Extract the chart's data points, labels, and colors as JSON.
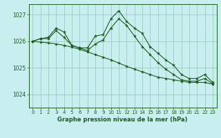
{
  "bg_color": "#c8eef0",
  "plot_bg_color": "#c8eef0",
  "grid_color": "#99ccbb",
  "line_color": "#1a5c1a",
  "marker_color": "#1a5c1a",
  "title": "Graphe pression niveau de la mer (hPa)",
  "ylim": [
    1023.5,
    1027.4
  ],
  "yticks": [
    1024,
    1025,
    1026,
    1027
  ],
  "xlim": [
    -0.5,
    23.5
  ],
  "xticks": [
    0,
    1,
    2,
    3,
    4,
    5,
    6,
    7,
    8,
    9,
    10,
    11,
    12,
    13,
    14,
    15,
    16,
    17,
    18,
    19,
    20,
    21,
    22,
    23
  ],
  "series": [
    [
      1026.0,
      1026.1,
      1026.15,
      1026.5,
      1026.35,
      1025.85,
      1025.75,
      1025.75,
      1026.2,
      1026.25,
      1026.85,
      1027.15,
      1026.75,
      1026.5,
      1026.3,
      1025.8,
      1025.55,
      1025.3,
      1025.1,
      1024.75,
      1024.6,
      1024.6,
      1024.75,
      1024.45
    ],
    [
      1026.0,
      1026.1,
      1026.1,
      1026.4,
      1026.15,
      1025.85,
      1025.75,
      1025.65,
      1025.9,
      1026.05,
      1026.5,
      1026.85,
      1026.6,
      1026.2,
      1025.8,
      1025.5,
      1025.2,
      1024.95,
      1024.75,
      1024.55,
      1024.5,
      1024.5,
      1024.6,
      1024.4
    ],
    [
      1026.0,
      1025.97,
      1025.94,
      1025.9,
      1025.85,
      1025.78,
      1025.7,
      1025.6,
      1025.5,
      1025.4,
      1025.3,
      1025.18,
      1025.06,
      1024.95,
      1024.85,
      1024.75,
      1024.65,
      1024.6,
      1024.55,
      1024.5,
      1024.45,
      1024.45,
      1024.45,
      1024.38
    ]
  ]
}
